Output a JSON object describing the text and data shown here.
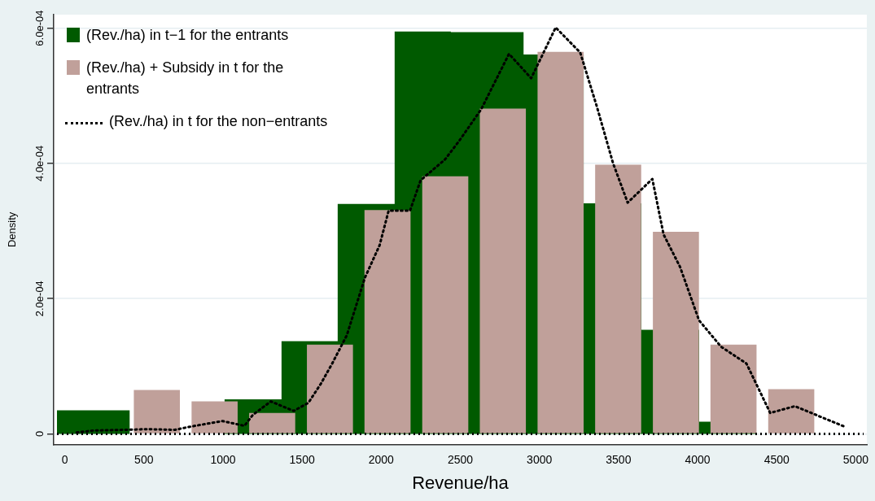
{
  "chart_data": {
    "type": "histogram",
    "xlabel": "Revenue/ha",
    "ylabel": "Density",
    "xlim": [
      -70,
      5070
    ],
    "xticks": [
      0,
      500,
      1000,
      1500,
      2000,
      2500,
      3000,
      3500,
      4000,
      4500,
      5000
    ],
    "ylim": [
      -1.6e-05,
      0.00062
    ],
    "yticks": [
      0,
      {
        "value": 0.0002,
        "label": "2.0e-04"
      },
      {
        "value": 0.0004,
        "label": "4.0e-04"
      },
      {
        "value": 0.0006,
        "label": "6.0e-04"
      }
    ],
    "grid": "y",
    "legend": "top left",
    "series": [
      {
        "name": "(Rev./ha) in t−1 for the entrants",
        "color": "#005a00",
        "bins": [
          -50,
          410,
          1010,
          1370,
          1725,
          2085,
          2440,
          2900,
          3280,
          3645,
          4010,
          4370
        ],
        "values": [
          3.5e-05,
          0,
          5.1e-05,
          0.000137,
          0.00034,
          0.000595,
          0.000594,
          0.000561,
          0.000341,
          0.000154,
          1.8e-05
        ]
      },
      {
        "name": "(Rev./ha) + Subsidy in t for the entrants",
        "type": "bar",
        "color": "#c0a09a",
        "x": [
          582,
          947,
          1311,
          1676,
          2040,
          2405,
          2769,
          3134,
          3498,
          3863,
          4227,
          4592
        ],
        "values": [
          6.5e-05,
          4.8e-05,
          3.1e-05,
          0.000132,
          0.000331,
          0.000381,
          0.000481,
          0.000565,
          0.000398,
          0.000299,
          0.000132,
          6.6e-05
        ]
      },
      {
        "name": "(Rev./ha) in t for the non−entrants",
        "type": "line",
        "color": "#000000",
        "line_style": "dotted",
        "marker": "none",
        "x": [
          75,
          179,
          386,
          515,
          696,
          800,
          996,
          1136,
          1188,
          1302,
          1447,
          1540,
          1618,
          1690,
          1783,
          1897,
          1990,
          2047,
          2182,
          2249,
          2404,
          2492,
          2632,
          2808,
          2948,
          3103,
          3258,
          3362,
          3466,
          3558,
          3714,
          3785,
          3889,
          4009,
          4148,
          4309,
          4459,
          4615,
          4926
        ],
        "values": [
          2e-06,
          5e-06,
          6e-06,
          7e-06,
          6e-06,
          1.1e-05,
          1.9e-05,
          1.2e-05,
          2.8e-05,
          4.8e-05,
          3.4e-05,
          4.6e-05,
          7.4e-05,
          0.000104,
          0.000146,
          0.000231,
          0.000279,
          0.00033,
          0.00033,
          0.000375,
          0.000406,
          0.000433,
          0.00048,
          0.000562,
          0.000526,
          0.000601,
          0.000564,
          0.000485,
          0.0004,
          0.000342,
          0.000377,
          0.000295,
          0.000247,
          0.000168,
          0.000129,
          0.000104,
          3.1e-05,
          4.1e-05,
          1.1e-05
        ]
      }
    ],
    "ref_lines": [
      {
        "axis": "y",
        "value": 0,
        "color": "#000000",
        "line_style": "dotted"
      }
    ]
  }
}
